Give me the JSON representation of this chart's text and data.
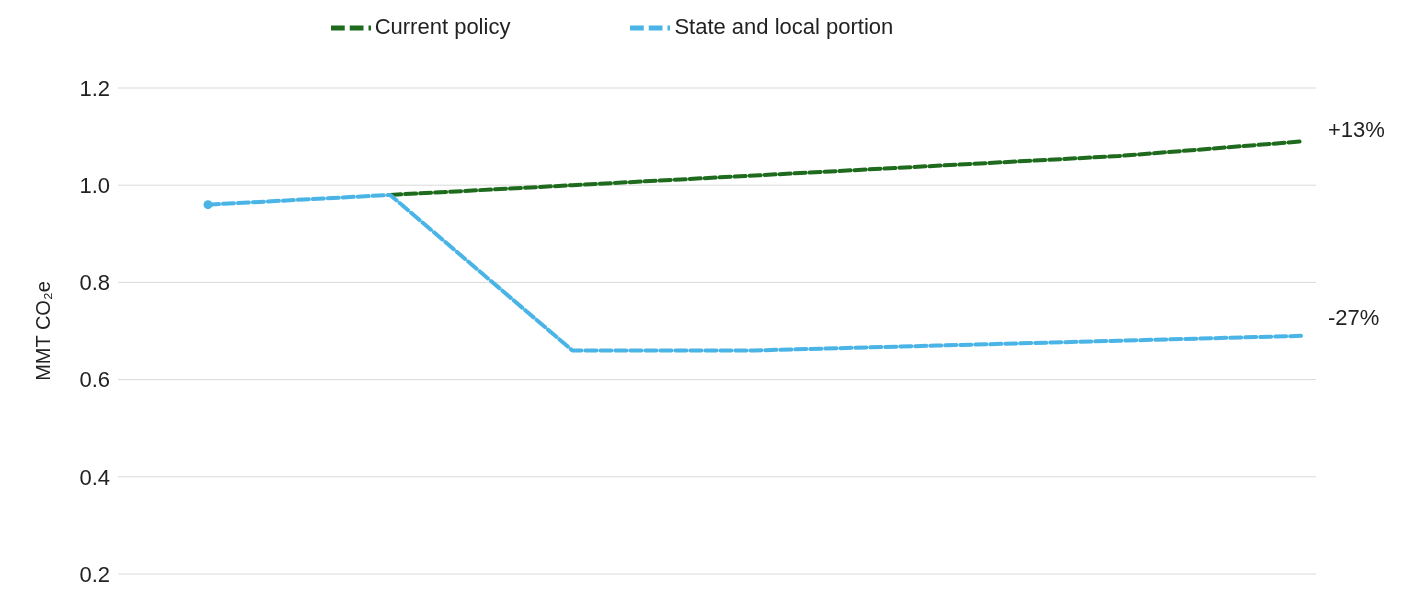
{
  "chart_data": {
    "type": "line",
    "ylabel": "MMT CO₂e",
    "categories": [
      null,
      null,
      null,
      null,
      null,
      null,
      null
    ],
    "series": [
      {
        "name": "Current policy",
        "color": "#1e6b1e",
        "values": [
          null,
          0.98,
          1.0,
          1.02,
          1.04,
          1.06,
          1.09
        ]
      },
      {
        "name": "State and local portion",
        "color": "#4ab4e6",
        "values": [
          0.96,
          0.98,
          0.66,
          0.66,
          0.67,
          0.68,
          0.69
        ]
      },
      {
        "type": "scatter",
        "color": "#4ab4e6",
        "values": [
          0.96,
          null,
          null,
          null,
          null,
          null,
          null
        ]
      }
    ],
    "ylim": [
      0.2,
      1.2
    ],
    "yticks": [
      0.2,
      0.4,
      0.6,
      0.8,
      {
        "value": 1,
        "label": "1.0"
      },
      1.2
    ],
    "grid": "y",
    "legend": "top",
    "line_style": "dashed",
    "tick_labels": "y",
    "annotations": [
      "+13%",
      "-27%"
    ]
  }
}
